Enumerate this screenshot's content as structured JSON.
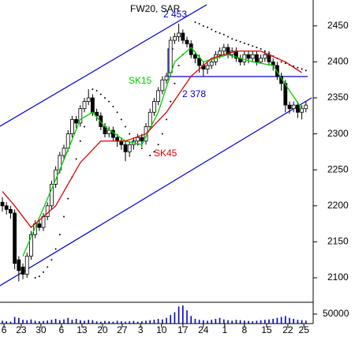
{
  "chart_data": {
    "type": "candlestick",
    "title": "FW20, SAR",
    "open": [
      2205,
      2200,
      2195,
      2190,
      2125,
      2115,
      2105,
      2130,
      2160,
      2175,
      2170,
      2185,
      2200,
      2230,
      2250,
      2270,
      2280,
      2300,
      2320,
      2315,
      2335,
      2345,
      2350,
      2330,
      2325,
      2310,
      2300,
      2305,
      2295,
      2290,
      2285,
      2275,
      2285,
      2290,
      2295,
      2290,
      2310,
      2330,
      2345,
      2360,
      2375,
      2385,
      2430,
      2435,
      2440,
      2430,
      2425,
      2410,
      2405,
      2395,
      2390,
      2395,
      2400,
      2410,
      2415,
      2420,
      2410,
      2415,
      2405,
      2400,
      2410,
      2405,
      2410,
      2400,
      2405,
      2410,
      2400,
      2395,
      2380,
      2370,
      2340,
      2335,
      2340,
      2330,
      2335
    ],
    "high": [
      2212,
      2205,
      2200,
      2195,
      2130,
      2120,
      2135,
      2165,
      2180,
      2180,
      2190,
      2205,
      2235,
      2255,
      2275,
      2285,
      2305,
      2325,
      2325,
      2340,
      2350,
      2362,
      2355,
      2335,
      2330,
      2315,
      2310,
      2310,
      2300,
      2295,
      2290,
      2290,
      2295,
      2300,
      2300,
      2315,
      2335,
      2350,
      2365,
      2380,
      2385,
      2435,
      2440,
      2453,
      2445,
      2435,
      2430,
      2415,
      2410,
      2400,
      2400,
      2405,
      2415,
      2420,
      2425,
      2425,
      2420,
      2420,
      2410,
      2415,
      2415,
      2415,
      2415,
      2410,
      2415,
      2415,
      2405,
      2400,
      2385,
      2375,
      2345,
      2345,
      2345,
      2340,
      2345
    ],
    "low": [
      2192,
      2188,
      2182,
      2112,
      2095,
      2098,
      2100,
      2125,
      2155,
      2165,
      2165,
      2180,
      2195,
      2225,
      2245,
      2265,
      2275,
      2295,
      2308,
      2310,
      2330,
      2340,
      2325,
      2318,
      2305,
      2295,
      2295,
      2290,
      2282,
      2278,
      2262,
      2268,
      2278,
      2285,
      2282,
      2285,
      2305,
      2325,
      2340,
      2355,
      2370,
      2380,
      2425,
      2428,
      2425,
      2420,
      2405,
      2398,
      2385,
      2380,
      2383,
      2390,
      2395,
      2405,
      2410,
      2405,
      2405,
      2400,
      2395,
      2395,
      2398,
      2400,
      2395,
      2398,
      2400,
      2395,
      2388,
      2375,
      2360,
      2330,
      2328,
      2330,
      2322,
      2320,
      2330
    ],
    "close": [
      2200,
      2195,
      2190,
      2120,
      2110,
      2105,
      2130,
      2160,
      2175,
      2170,
      2185,
      2200,
      2230,
      2250,
      2270,
      2280,
      2300,
      2320,
      2315,
      2335,
      2345,
      2350,
      2330,
      2325,
      2310,
      2300,
      2305,
      2295,
      2290,
      2285,
      2275,
      2285,
      2290,
      2295,
      2290,
      2310,
      2330,
      2345,
      2360,
      2375,
      2380,
      2430,
      2435,
      2440,
      2430,
      2425,
      2410,
      2405,
      2395,
      2390,
      2395,
      2400,
      2410,
      2415,
      2420,
      2410,
      2415,
      2405,
      2400,
      2410,
      2405,
      2410,
      2400,
      2405,
      2410,
      2400,
      2395,
      2380,
      2370,
      2340,
      2335,
      2340,
      2330,
      2335,
      2340
    ],
    "color_up": "#ffffff",
    "color_down": "#000000",
    "ylim": [
      2066,
      2486
    ],
    "yticks": [
      2100,
      2150,
      2200,
      2250,
      2300,
      2350,
      2400,
      2450
    ],
    "xlim": [
      -0.58,
      75.77
    ],
    "xticks": [
      {
        "value": 0.4,
        "label": "6"
      },
      {
        "value": 4.6,
        "label": "23"
      },
      {
        "value": 9.4,
        "label": "30"
      },
      {
        "value": 14.4,
        "label": "6"
      },
      {
        "value": 19.4,
        "label": "13"
      },
      {
        "value": 24.4,
        "label": "20"
      },
      {
        "value": 29.2,
        "label": "27"
      },
      {
        "value": 33.7,
        "label": "3"
      },
      {
        "value": 38.8,
        "label": "10"
      },
      {
        "value": 44,
        "label": "17"
      },
      {
        "value": 49,
        "label": "24"
      },
      {
        "value": 54.2,
        "label": "1"
      },
      {
        "value": 59,
        "label": "8"
      },
      {
        "value": 64.4,
        "label": "15"
      },
      {
        "value": 69.6,
        "label": "22"
      },
      {
        "value": 73.5,
        "label": "25"
      }
    ],
    "lines": [
      {
        "name": "SK15",
        "color": "#00cc00",
        "x": [
          5,
          8,
          14,
          19,
          22,
          25,
          30,
          34,
          38,
          42,
          46,
          49,
          55,
          61,
          66,
          70,
          73
        ],
        "values": [
          2130,
          2170,
          2250,
          2320,
          2330,
          2310,
          2290,
          2285,
          2330,
          2400,
          2420,
          2400,
          2410,
          2400,
          2395,
          2360,
          2335
        ]
      },
      {
        "name": "SK45",
        "color": "#dd0000",
        "x": [
          0,
          3,
          7,
          13,
          19,
          24,
          30,
          35,
          40,
          46,
          51,
          57,
          63,
          69,
          73
        ],
        "values": [
          2220,
          2200,
          2170,
          2200,
          2260,
          2290,
          2290,
          2300,
          2330,
          2380,
          2405,
          2415,
          2415,
          2400,
          2385
        ]
      }
    ],
    "sar": {
      "color": "#000000",
      "x": [
        8,
        9,
        10,
        11,
        12,
        13,
        14,
        15,
        16,
        17,
        18,
        19,
        20,
        22,
        23,
        24,
        25,
        26,
        27,
        28,
        29,
        30,
        31,
        32,
        33,
        34,
        36,
        37,
        38,
        39,
        40,
        41,
        42,
        43,
        44,
        47,
        48,
        49,
        50,
        51,
        52,
        53,
        54,
        55,
        56,
        57,
        58,
        59,
        60,
        61,
        62,
        63,
        64,
        65,
        66,
        67,
        68,
        69,
        70,
        71,
        72,
        73,
        74
      ],
      "values": [
        2100,
        2102,
        2108,
        2115,
        2125,
        2140,
        2160,
        2185,
        2210,
        2240,
        2265,
        2290,
        2310,
        2362,
        2360,
        2355,
        2350,
        2345,
        2338,
        2330,
        2320,
        2310,
        2300,
        2290,
        2285,
        2280,
        2270,
        2275,
        2285,
        2300,
        2320,
        2345,
        2370,
        2395,
        2410,
        2455,
        2453,
        2450,
        2448,
        2445,
        2442,
        2440,
        2438,
        2435,
        2432,
        2430,
        2428,
        2426,
        2424,
        2422,
        2420,
        2418,
        2415,
        2412,
        2408,
        2405,
        2400,
        2398,
        2396,
        2394,
        2392,
        2390,
        2388
      ]
    },
    "volume": {
      "color": "#0000cc",
      "ylim": [
        0,
        108000
      ],
      "yticks": [
        50000
      ],
      "values": [
        15000,
        12000,
        10000,
        35000,
        30000,
        20000,
        18000,
        22000,
        15000,
        12000,
        14000,
        16000,
        20000,
        25000,
        18000,
        22000,
        30000,
        20000,
        25000,
        18000,
        15000,
        20000,
        18000,
        12000,
        10000,
        14000,
        12000,
        10000,
        15000,
        12000,
        10000,
        12000,
        14000,
        10000,
        12000,
        15000,
        18000,
        20000,
        25000,
        22000,
        30000,
        45000,
        60000,
        90000,
        95000,
        70000,
        40000,
        25000,
        20000,
        18000,
        15000,
        20000,
        25000,
        30000,
        22000,
        18000,
        15000,
        20000,
        18000,
        16000,
        14000,
        12000,
        15000,
        18000,
        20000,
        22000,
        25000,
        30000,
        35000,
        40000,
        30000,
        25000,
        20000,
        18000,
        15000
      ]
    },
    "annotations": [
      {
        "text": "2 453"
      },
      {
        "text": "2 378"
      }
    ]
  }
}
